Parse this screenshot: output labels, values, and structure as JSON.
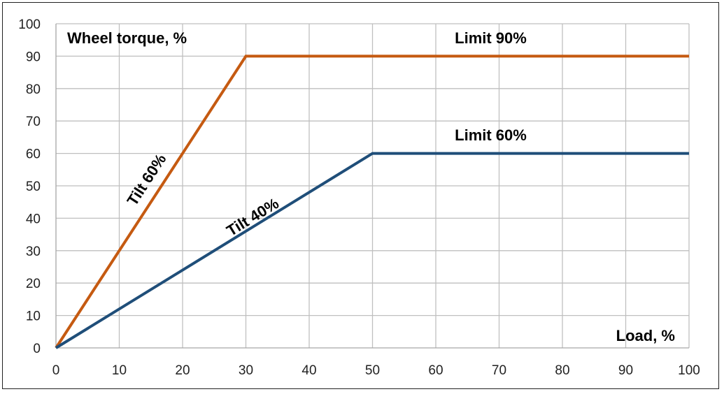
{
  "chart_data": {
    "type": "line",
    "ylabel": "Wheel torque, %",
    "xlabel": "Load, %",
    "xlim": [
      0,
      100
    ],
    "ylim": [
      0,
      100
    ],
    "x_ticks": [
      0,
      10,
      20,
      30,
      40,
      50,
      60,
      70,
      80,
      90,
      100
    ],
    "y_ticks": [
      0,
      10,
      20,
      30,
      40,
      50,
      60,
      70,
      80,
      90,
      100
    ],
    "grid": true,
    "series": [
      {
        "x": [
          0,
          30,
          100
        ],
        "y": [
          0,
          90,
          90
        ],
        "color": "#c55a11"
      },
      {
        "x": [
          0,
          50,
          100
        ],
        "y": [
          0,
          60,
          60
        ],
        "color": "#1f4e79"
      }
    ],
    "annotations": [
      {
        "text": "Limit 90%",
        "x": 63,
        "y": 94
      },
      {
        "text": "Limit 60%",
        "x": 63,
        "y": 64
      },
      {
        "text": "Tilt 60%",
        "x": 15,
        "y": 51,
        "angle_series": 0
      },
      {
        "text": "Tilt 40%",
        "x": 31.5,
        "y": 39,
        "angle_series": 1
      }
    ]
  }
}
